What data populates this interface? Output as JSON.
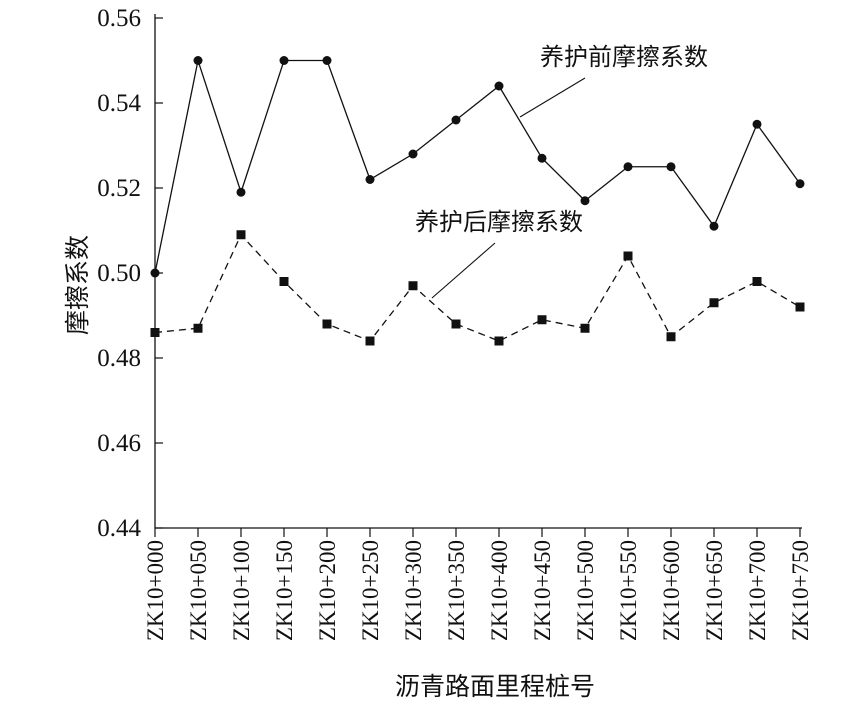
{
  "chart_data": {
    "type": "line",
    "title": "",
    "xlabel": "沥青路面里程桩号",
    "ylabel": "摩擦系数",
    "ylim": [
      0.44,
      0.56
    ],
    "yticks": [
      "0.44",
      "0.46",
      "0.48",
      "0.50",
      "0.52",
      "0.54",
      "0.56"
    ],
    "grid": false,
    "categories": [
      "ZK10+000",
      "ZK10+050",
      "ZK10+100",
      "ZK10+150",
      "ZK10+200",
      "ZK10+250",
      "ZK10+300",
      "ZK10+350",
      "ZK10+400",
      "ZK10+450",
      "ZK10+500",
      "ZK10+550",
      "ZK10+600",
      "ZK10+650",
      "ZK10+700",
      "ZK10+750"
    ],
    "series": [
      {
        "name": "养护前摩擦系数",
        "line_style": "solid",
        "marker": "circle",
        "values": [
          0.5,
          0.55,
          0.519,
          0.55,
          0.55,
          0.522,
          0.528,
          0.536,
          0.544,
          0.527,
          0.517,
          0.525,
          0.525,
          0.511,
          0.535,
          0.521
        ]
      },
      {
        "name": "养护后摩擦系数",
        "line_style": "dashed",
        "marker": "square",
        "values": [
          0.486,
          0.487,
          0.509,
          0.498,
          0.488,
          0.484,
          0.497,
          0.488,
          0.484,
          0.489,
          0.487,
          0.504,
          0.485,
          0.493,
          0.498,
          0.492
        ]
      }
    ]
  }
}
